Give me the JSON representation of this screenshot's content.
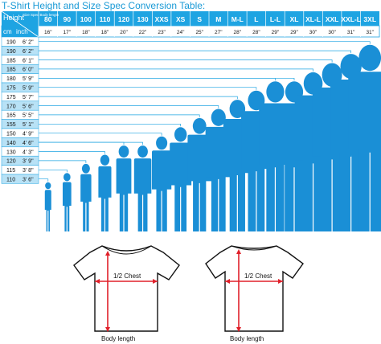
{
  "title": "T-Shirt Height and Size Spec Conversion Table:",
  "header": {
    "height_label": "Height",
    "spec_label": "Size Spec Body length",
    "cm_label": "cm",
    "inch_label": "inch"
  },
  "sizes": [
    "80",
    "90",
    "100",
    "110",
    "120",
    "130",
    "XXS",
    "XS",
    "S",
    "M",
    "M-L",
    "L",
    "L-L",
    "XL",
    "XL-L",
    "XXL",
    "XXL-L",
    "3XL"
  ],
  "inches": [
    "16\"",
    "17\"",
    "18\"",
    "18\"",
    "20\"",
    "22\"",
    "23\"",
    "24\"",
    "25\"",
    "27\"",
    "28\"",
    "28\"",
    "29\"",
    "29\"",
    "30\"",
    "30\"",
    "31\"",
    "31\""
  ],
  "heights": [
    {
      "cm": "190",
      "inch": "6' 2\""
    },
    {
      "cm": "190",
      "inch": "6' 2\""
    },
    {
      "cm": "185",
      "inch": "6' 1\""
    },
    {
      "cm": "185",
      "inch": "6' 0\""
    },
    {
      "cm": "180",
      "inch": "5' 9\""
    },
    {
      "cm": "175",
      "inch": "5' 9\""
    },
    {
      "cm": "175",
      "inch": "5' 7\""
    },
    {
      "cm": "170",
      "inch": "5' 6\""
    },
    {
      "cm": "165",
      "inch": "5' 5\""
    },
    {
      "cm": "155",
      "inch": "5' 1\""
    },
    {
      "cm": "150",
      "inch": "4' 9\""
    },
    {
      "cm": "140",
      "inch": "4' 6\""
    },
    {
      "cm": "130",
      "inch": "4' 3\""
    },
    {
      "cm": "120",
      "inch": "3' 9\""
    },
    {
      "cm": "115",
      "inch": "3' 8\""
    },
    {
      "cm": "110",
      "inch": "3' 6\""
    }
  ],
  "shirt_labels": {
    "chest": "1/2 Chest",
    "length": "Body length"
  },
  "colors": {
    "accent": "#1ea4e2",
    "figure": "#1a8fd6",
    "row_alt": "#b8e2f6",
    "arrow": "#e0202a"
  }
}
